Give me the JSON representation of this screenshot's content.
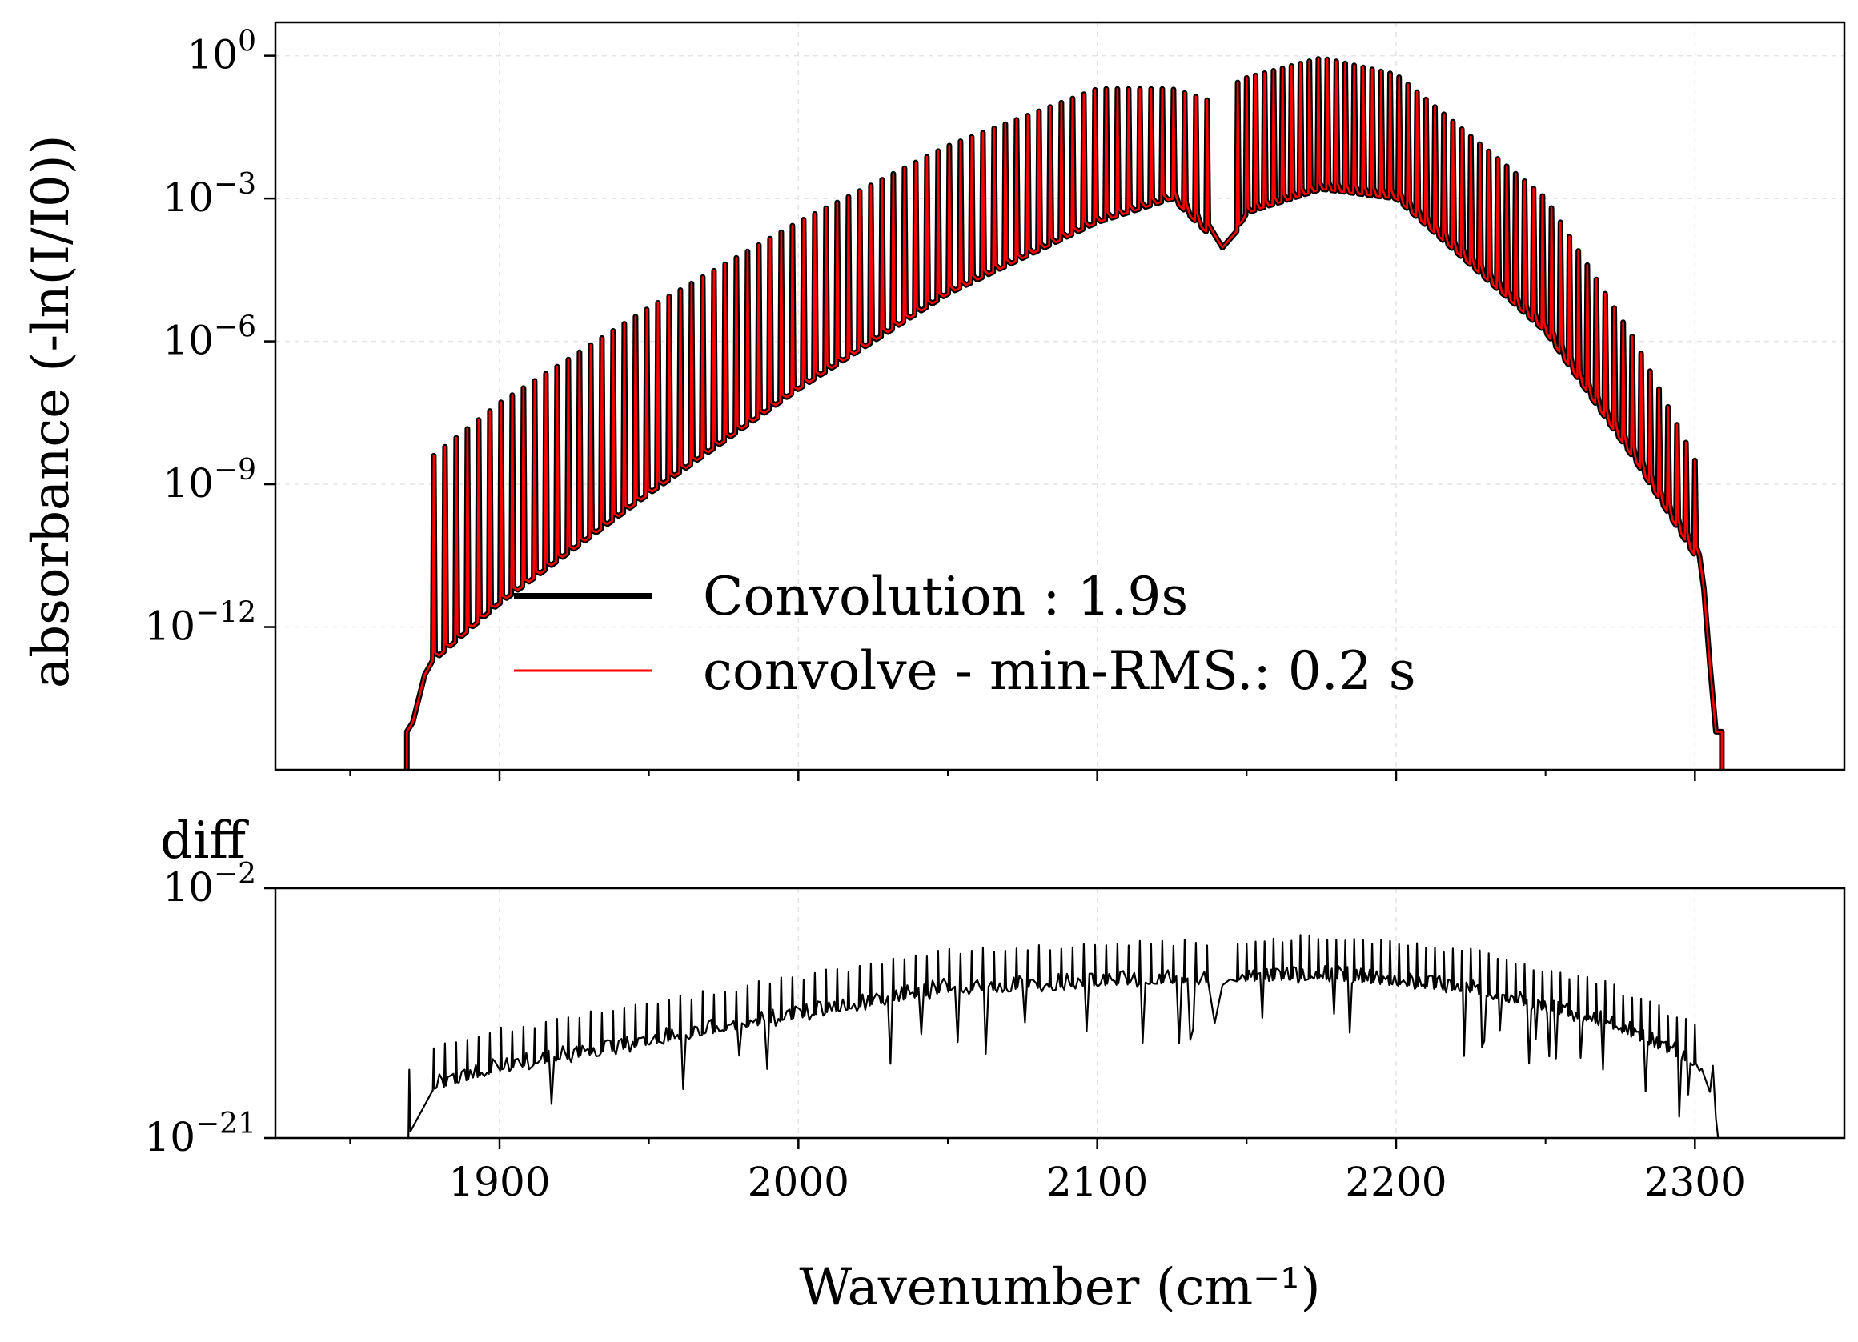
{
  "chart_data": [
    {
      "panel": "top",
      "type": "line",
      "yscale": "log",
      "ylabel": "absorbance (-ln(I/I0))",
      "xlim": [
        1825,
        2350
      ],
      "ylim_exponent": [
        -15,
        0.7
      ],
      "y_ticks": [
        {
          "exp": 0,
          "base": "10",
          "sup": "0"
        },
        {
          "exp": -3,
          "base": "10",
          "sup": "−3"
        },
        {
          "exp": -6,
          "base": "10",
          "sup": "−6"
        },
        {
          "exp": -9,
          "base": "10",
          "sup": "−9"
        },
        {
          "exp": -12,
          "base": "10",
          "sup": "−12"
        }
      ],
      "grid": true,
      "legend_position": "lower center",
      "series": [
        {
          "name": "Convolution : 1.9s",
          "color": "#000000",
          "description_values": {
            "band_start": 1870,
            "band_end": 2308,
            "band_center_gap": 2143,
            "peak_max_log10": 0.0
          }
        },
        {
          "name": "convolve - min-RMS.: 0.2 s",
          "color": "#ff0000"
        }
      ],
      "envelope_peak_log10": [
        [
          1878,
          -8.4
        ],
        [
          1900,
          -7.3
        ],
        [
          1950,
          -5.3
        ],
        [
          2000,
          -3.5
        ],
        [
          2050,
          -1.9
        ],
        [
          2100,
          -0.7
        ],
        [
          2125,
          -0.7
        ],
        [
          2140,
          -1.0
        ],
        [
          2148,
          -0.5
        ],
        [
          2175,
          -0.05
        ],
        [
          2200,
          -0.4
        ],
        [
          2250,
          -3.0
        ],
        [
          2280,
          -6.0
        ],
        [
          2300,
          -8.5
        ]
      ],
      "envelope_trough_log10": [
        [
          1878,
          -12.7
        ],
        [
          1900,
          -11.5
        ],
        [
          1950,
          -9.2
        ],
        [
          2000,
          -7.0
        ],
        [
          2050,
          -5.0
        ],
        [
          2100,
          -3.5
        ],
        [
          2125,
          -3.0
        ],
        [
          2143,
          -4.1
        ],
        [
          2150,
          -3.3
        ],
        [
          2175,
          -2.8
        ],
        [
          2200,
          -3.0
        ],
        [
          2250,
          -5.8
        ],
        [
          2280,
          -8.5
        ],
        [
          2300,
          -10.5
        ]
      ]
    },
    {
      "panel": "bottom",
      "type": "line",
      "yscale": "log",
      "ylabel": "diff",
      "xlabel": "Wavenumber (cm⁻¹)",
      "xlim": [
        1825,
        2350
      ],
      "ylim_exponent": [
        -21,
        -2
      ],
      "y_ticks": [
        {
          "exp": -2,
          "base": "10",
          "sup": "−2"
        },
        {
          "exp": -21,
          "base": "10",
          "sup": "−21"
        }
      ],
      "x_ticks": [
        1900,
        2000,
        2100,
        2200,
        2300
      ],
      "x_minor_ticks": [
        1850,
        1950,
        2050,
        2150,
        2250
      ],
      "grid": true,
      "series": [
        {
          "name": "",
          "color": "#000000"
        }
      ],
      "envelope_base_log10": [
        [
          1870,
          -17.5
        ],
        [
          1900,
          -15.5
        ],
        [
          1950,
          -13.5
        ],
        [
          2000,
          -11.5
        ],
        [
          2050,
          -9.5
        ],
        [
          2100,
          -9.0
        ],
        [
          2175,
          -8.5
        ],
        [
          2225,
          -9.5
        ],
        [
          2270,
          -12.0
        ],
        [
          2300,
          -15.0
        ],
        [
          2308,
          -18.0
        ]
      ]
    }
  ],
  "legend": {
    "line1": "Convolution : 1.9s",
    "line2": "convolve - min-RMS.: 0.2 s"
  }
}
